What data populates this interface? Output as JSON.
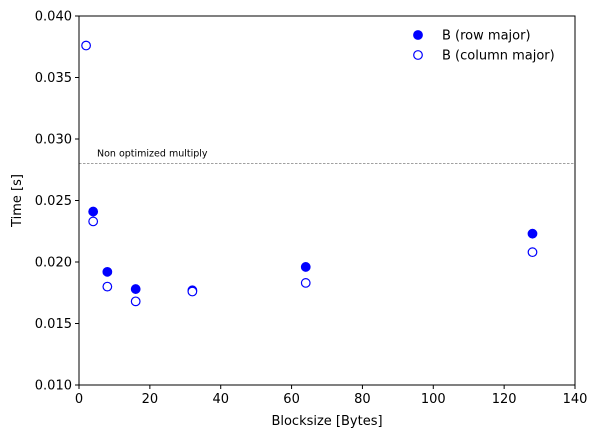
{
  "chart_data": {
    "type": "scatter",
    "xlabel": "Blocksize [Bytes]",
    "ylabel": "Time [s]",
    "xlim": [
      0,
      140
    ],
    "ylim": [
      0.01,
      0.04
    ],
    "xticks": [
      0,
      20,
      40,
      60,
      80,
      100,
      120,
      140
    ],
    "xtick_labels": [
      "0",
      "20",
      "40",
      "60",
      "80",
      "100",
      "120",
      "140"
    ],
    "yticks": [
      0.01,
      0.015,
      0.02,
      0.025,
      0.03,
      0.035,
      0.04
    ],
    "ytick_labels": [
      "0.010",
      "0.015",
      "0.020",
      "0.025",
      "0.030",
      "0.035",
      "0.040"
    ],
    "grid": false,
    "legend_position": "top-right",
    "series": [
      {
        "name": "B (row major)",
        "marker": "filled-circle",
        "color": "#0000ff",
        "x": [
          4,
          8,
          16,
          32,
          64,
          128
        ],
        "y": [
          0.0241,
          0.0192,
          0.0178,
          0.0177,
          0.0196,
          0.0223
        ]
      },
      {
        "name": "B (column major)",
        "marker": "hollow-circle",
        "color": "#0000ff",
        "x": [
          2,
          4,
          8,
          16,
          32,
          64,
          128
        ],
        "y": [
          0.0376,
          0.0233,
          0.018,
          0.0168,
          0.0176,
          0.0183,
          0.0208
        ]
      }
    ],
    "reference_line": {
      "y": 0.028,
      "label": "Non optimized multiply",
      "style": "dashed",
      "color": "#808080"
    }
  }
}
